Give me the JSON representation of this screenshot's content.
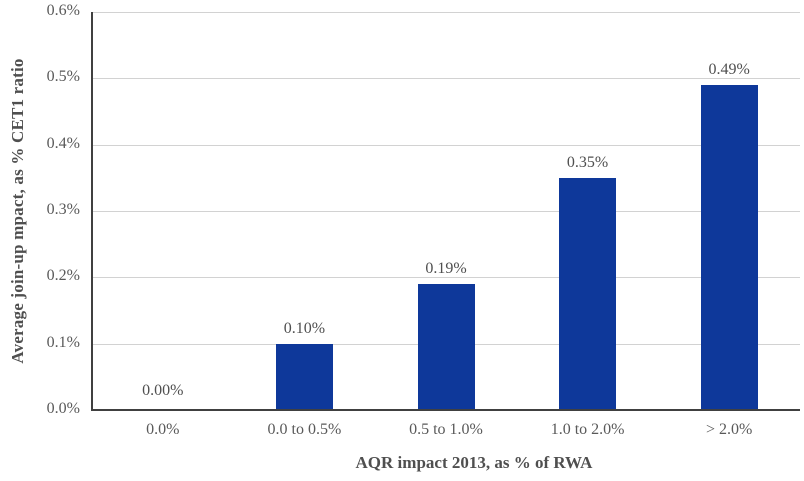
{
  "chart_data": {
    "type": "bar",
    "title": "",
    "categories": [
      "0.0%",
      "0.0 to 0.5%",
      "0.5 to 1.0%",
      "1.0 to 2.0%",
      "> 2.0%"
    ],
    "values": [
      0.0,
      0.1,
      0.19,
      0.35,
      0.49
    ],
    "data_labels": [
      "0.00%",
      "0.10%",
      "0.19%",
      "0.35%",
      "0.49%"
    ],
    "xlabel": "AQR impact 2013, as % of RWA",
    "ylabel": "Average join-up mpact, as % CET1 ratio",
    "y_ticks": [
      {
        "label": "0.0%",
        "value": 0.0
      },
      {
        "label": "0.1%",
        "value": 0.1
      },
      {
        "label": "0.2%",
        "value": 0.2
      },
      {
        "label": "0.3%",
        "value": 0.3
      },
      {
        "label": "0.4%",
        "value": 0.4
      },
      {
        "label": "0.5%",
        "value": 0.5
      },
      {
        "label": "0.6%",
        "value": 0.6
      }
    ],
    "ylim": [
      0.0,
      0.6
    ],
    "grid": "horizontal",
    "legend": "none",
    "data_label_position": "outside-end",
    "colors": {
      "bar": "#0e389a",
      "gridline": "#d2d2d2",
      "axis_line": "#404040",
      "tick_text": "#595959",
      "data_label_text": "#4f4f4f"
    }
  }
}
